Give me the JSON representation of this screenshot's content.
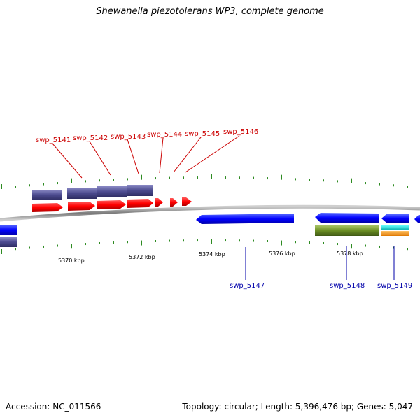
{
  "title": "Shewanella piezotolerans WP3, complete genome",
  "footer": {
    "accession": "Accession: NC_011566",
    "stats": "Topology: circular; Length: 5,396,476 bp; Genes: 5,047"
  },
  "colors": {
    "top_strand_label": "#cc0000",
    "bottom_strand_label": "#0000aa",
    "red_gene": "#ff0000",
    "blue_gene": "#0000ff",
    "purple_gene": "#4b4a8e",
    "olive_gene": "#6b8e23",
    "cyan_gene": "#00cccc",
    "orange_gene": "#ff9900",
    "backbone": "#888888",
    "tick": "#2e8b22"
  },
  "kbp_labels": [
    "5370 kbp",
    "5372 kbp",
    "5374 kbp",
    "5376 kbp",
    "5378 kbp"
  ],
  "top_genes": [
    "swp_5141",
    "swp_5142",
    "swp_5143",
    "swp_5144",
    "swp_5145",
    "swp_5146"
  ],
  "bottom_genes": [
    "swp_5147",
    "swp_5148",
    "swp_5149"
  ]
}
